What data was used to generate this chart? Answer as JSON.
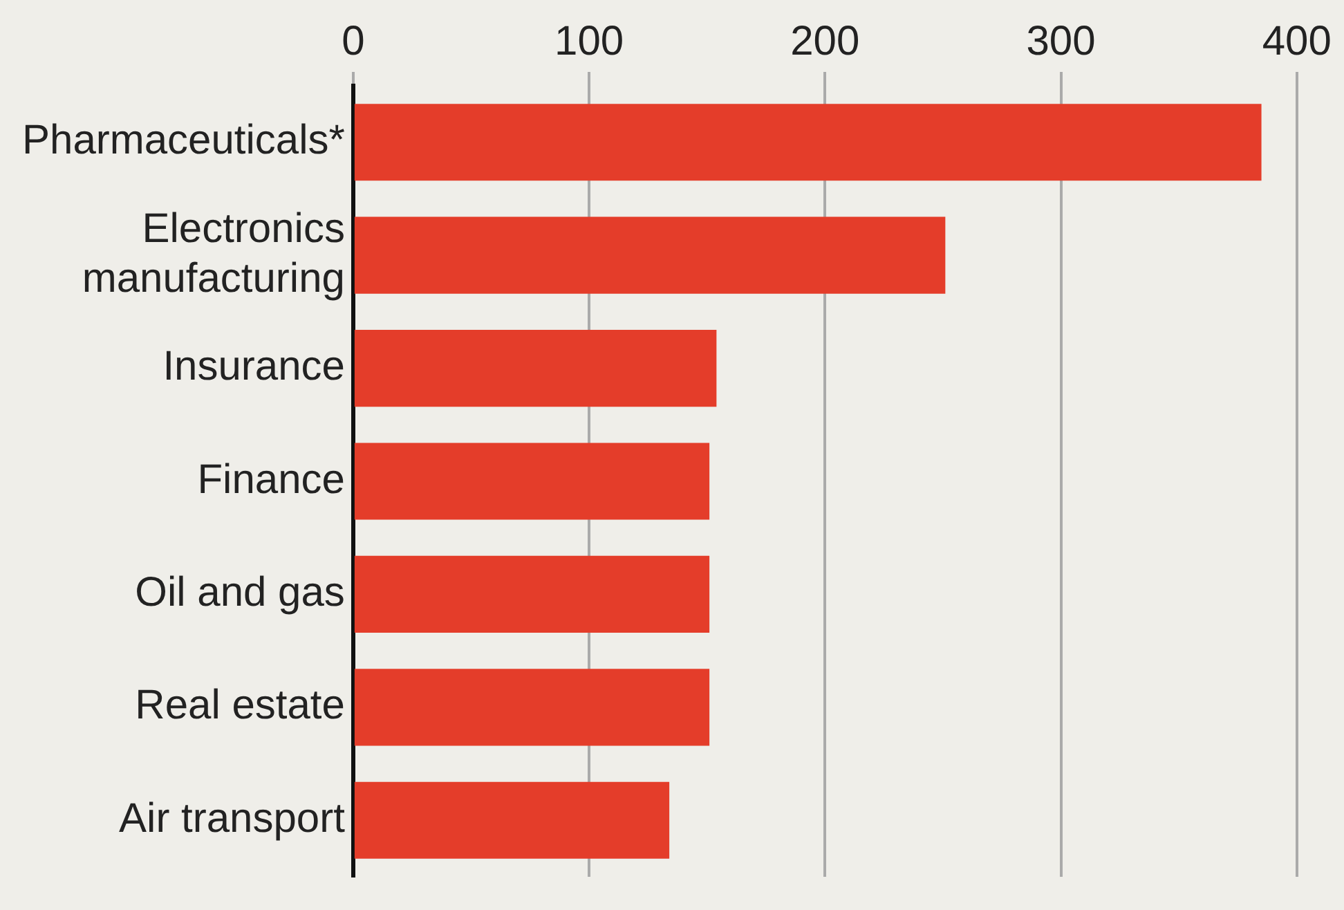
{
  "chart_data": {
    "type": "bar",
    "orientation": "horizontal",
    "categories": [
      "Pharmaceuticals*",
      "Electronics manufacturing",
      "Insurance",
      "Finance",
      "Oil and gas",
      "Real estate",
      "Air transport"
    ],
    "values": [
      385,
      251,
      154,
      151,
      151,
      151,
      134
    ],
    "color": "#e43d2a",
    "xlim": [
      0,
      420
    ],
    "xticks": [
      0,
      100,
      200,
      300,
      400
    ],
    "grid": "x"
  }
}
